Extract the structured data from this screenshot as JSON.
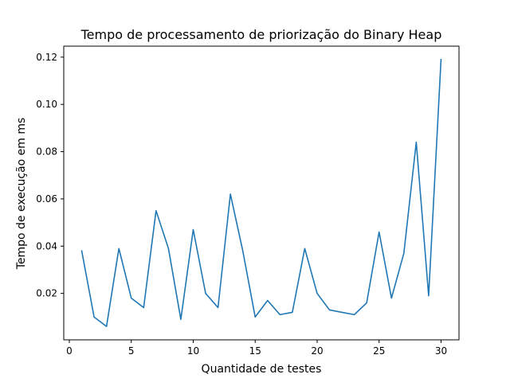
{
  "chart_data": {
    "type": "line",
    "title": "Tempo de processamento de priorização do Binary Heap",
    "xlabel": "Quantidade de testes",
    "ylabel": "Tempo de execução em ms",
    "xlim": [
      -0.45,
      31.45
    ],
    "ylim": [
      0.00035,
      0.12465
    ],
    "xticks": [
      0,
      5,
      10,
      15,
      20,
      25,
      30
    ],
    "xtick_labels": [
      "0",
      "5",
      "10",
      "15",
      "20",
      "25",
      "30"
    ],
    "yticks": [
      0.02,
      0.04,
      0.06,
      0.08,
      0.1,
      0.12
    ],
    "ytick_labels": [
      "0.02",
      "0.04",
      "0.06",
      "0.08",
      "0.10",
      "0.12"
    ],
    "grid": false,
    "color": "#1f77b4",
    "series": [
      {
        "x": [
          1,
          2,
          3,
          4,
          5,
          6,
          7,
          8,
          9,
          10,
          11,
          12,
          13,
          14,
          15,
          16,
          17,
          18,
          19,
          20,
          21,
          22,
          23,
          24,
          25,
          26,
          27,
          28,
          29,
          30
        ],
        "values": [
          0.038,
          0.01,
          0.006,
          0.039,
          0.018,
          0.014,
          0.055,
          0.039,
          0.009,
          0.047,
          0.02,
          0.014,
          0.062,
          0.038,
          0.01,
          0.017,
          0.011,
          0.012,
          0.039,
          0.02,
          0.013,
          0.012,
          0.011,
          0.016,
          0.046,
          0.018,
          0.037,
          0.084,
          0.019,
          0.119
        ]
      }
    ]
  }
}
